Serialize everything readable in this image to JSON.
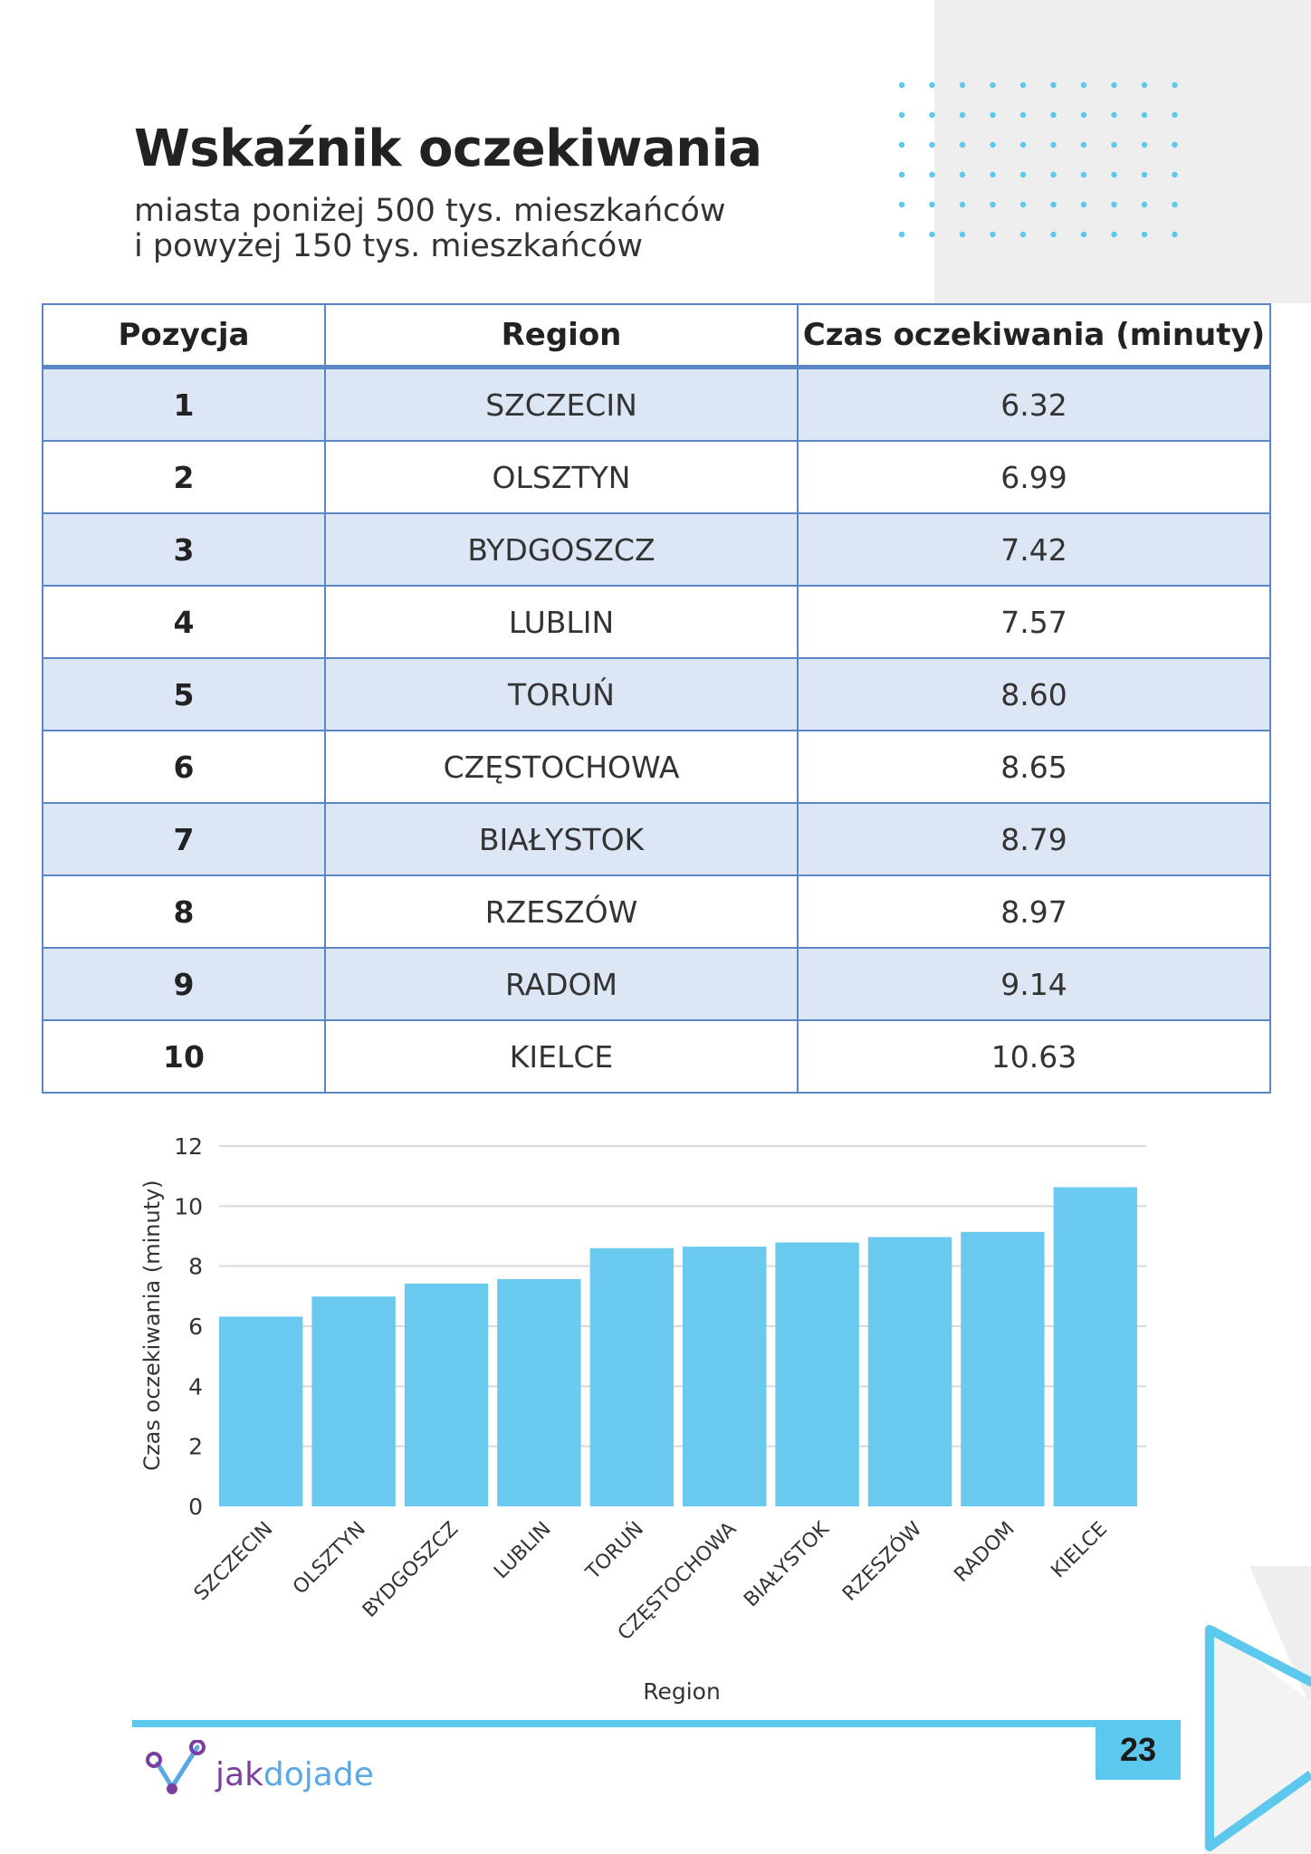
{
  "header": {
    "title": "Wskaźnik oczekiwania",
    "subtitle_line1": "miasta poniżej 500 tys. mieszkańców",
    "subtitle_line2": "i powyżej 150 tys. mieszkańców"
  },
  "table": {
    "headers": [
      "Pozycja",
      "Region",
      "Czas oczekiwania (minuty)"
    ],
    "rows": [
      [
        "1",
        "SZCZECIN",
        "6.32"
      ],
      [
        "2",
        "OLSZTYN",
        "6.99"
      ],
      [
        "3",
        "BYDGOSZCZ",
        "7.42"
      ],
      [
        "4",
        "LUBLIN",
        "7.57"
      ],
      [
        "5",
        "TORUŃ",
        "8.60"
      ],
      [
        "6",
        "CZĘSTOCHOWA",
        "8.65"
      ],
      [
        "7",
        "BIAŁYSTOK",
        "8.79"
      ],
      [
        "8",
        "RZESZÓW",
        "8.97"
      ],
      [
        "9",
        "RADOM",
        "9.14"
      ],
      [
        "10",
        "KIELCE",
        "10.63"
      ]
    ]
  },
  "chart_data": {
    "type": "bar",
    "categories": [
      "SZCZECIN",
      "OLSZTYN",
      "BYDGOSZCZ",
      "LUBLIN",
      "TORUŃ",
      "CZĘSTOCHOWA",
      "BIAŁYSTOK",
      "RZESZÓW",
      "RADOM",
      "KIELCE"
    ],
    "values": [
      6.32,
      6.99,
      7.42,
      7.57,
      8.6,
      8.65,
      8.79,
      8.97,
      9.14,
      10.63
    ],
    "title": "",
    "xlabel": "Region",
    "ylabel": "Czas oczekiwania (minuty)",
    "ylim": [
      0,
      12
    ],
    "yticks": [
      0,
      2,
      4,
      6,
      8,
      10,
      12
    ],
    "grid": true,
    "legend": "none",
    "bar_color": "#6ac9ee",
    "grid_color": "#d9d9d9"
  },
  "footer": {
    "page_number": "23",
    "logo_part1": "jak",
    "logo_part2": "dojade",
    "accent_color": "#5cc8ee"
  }
}
